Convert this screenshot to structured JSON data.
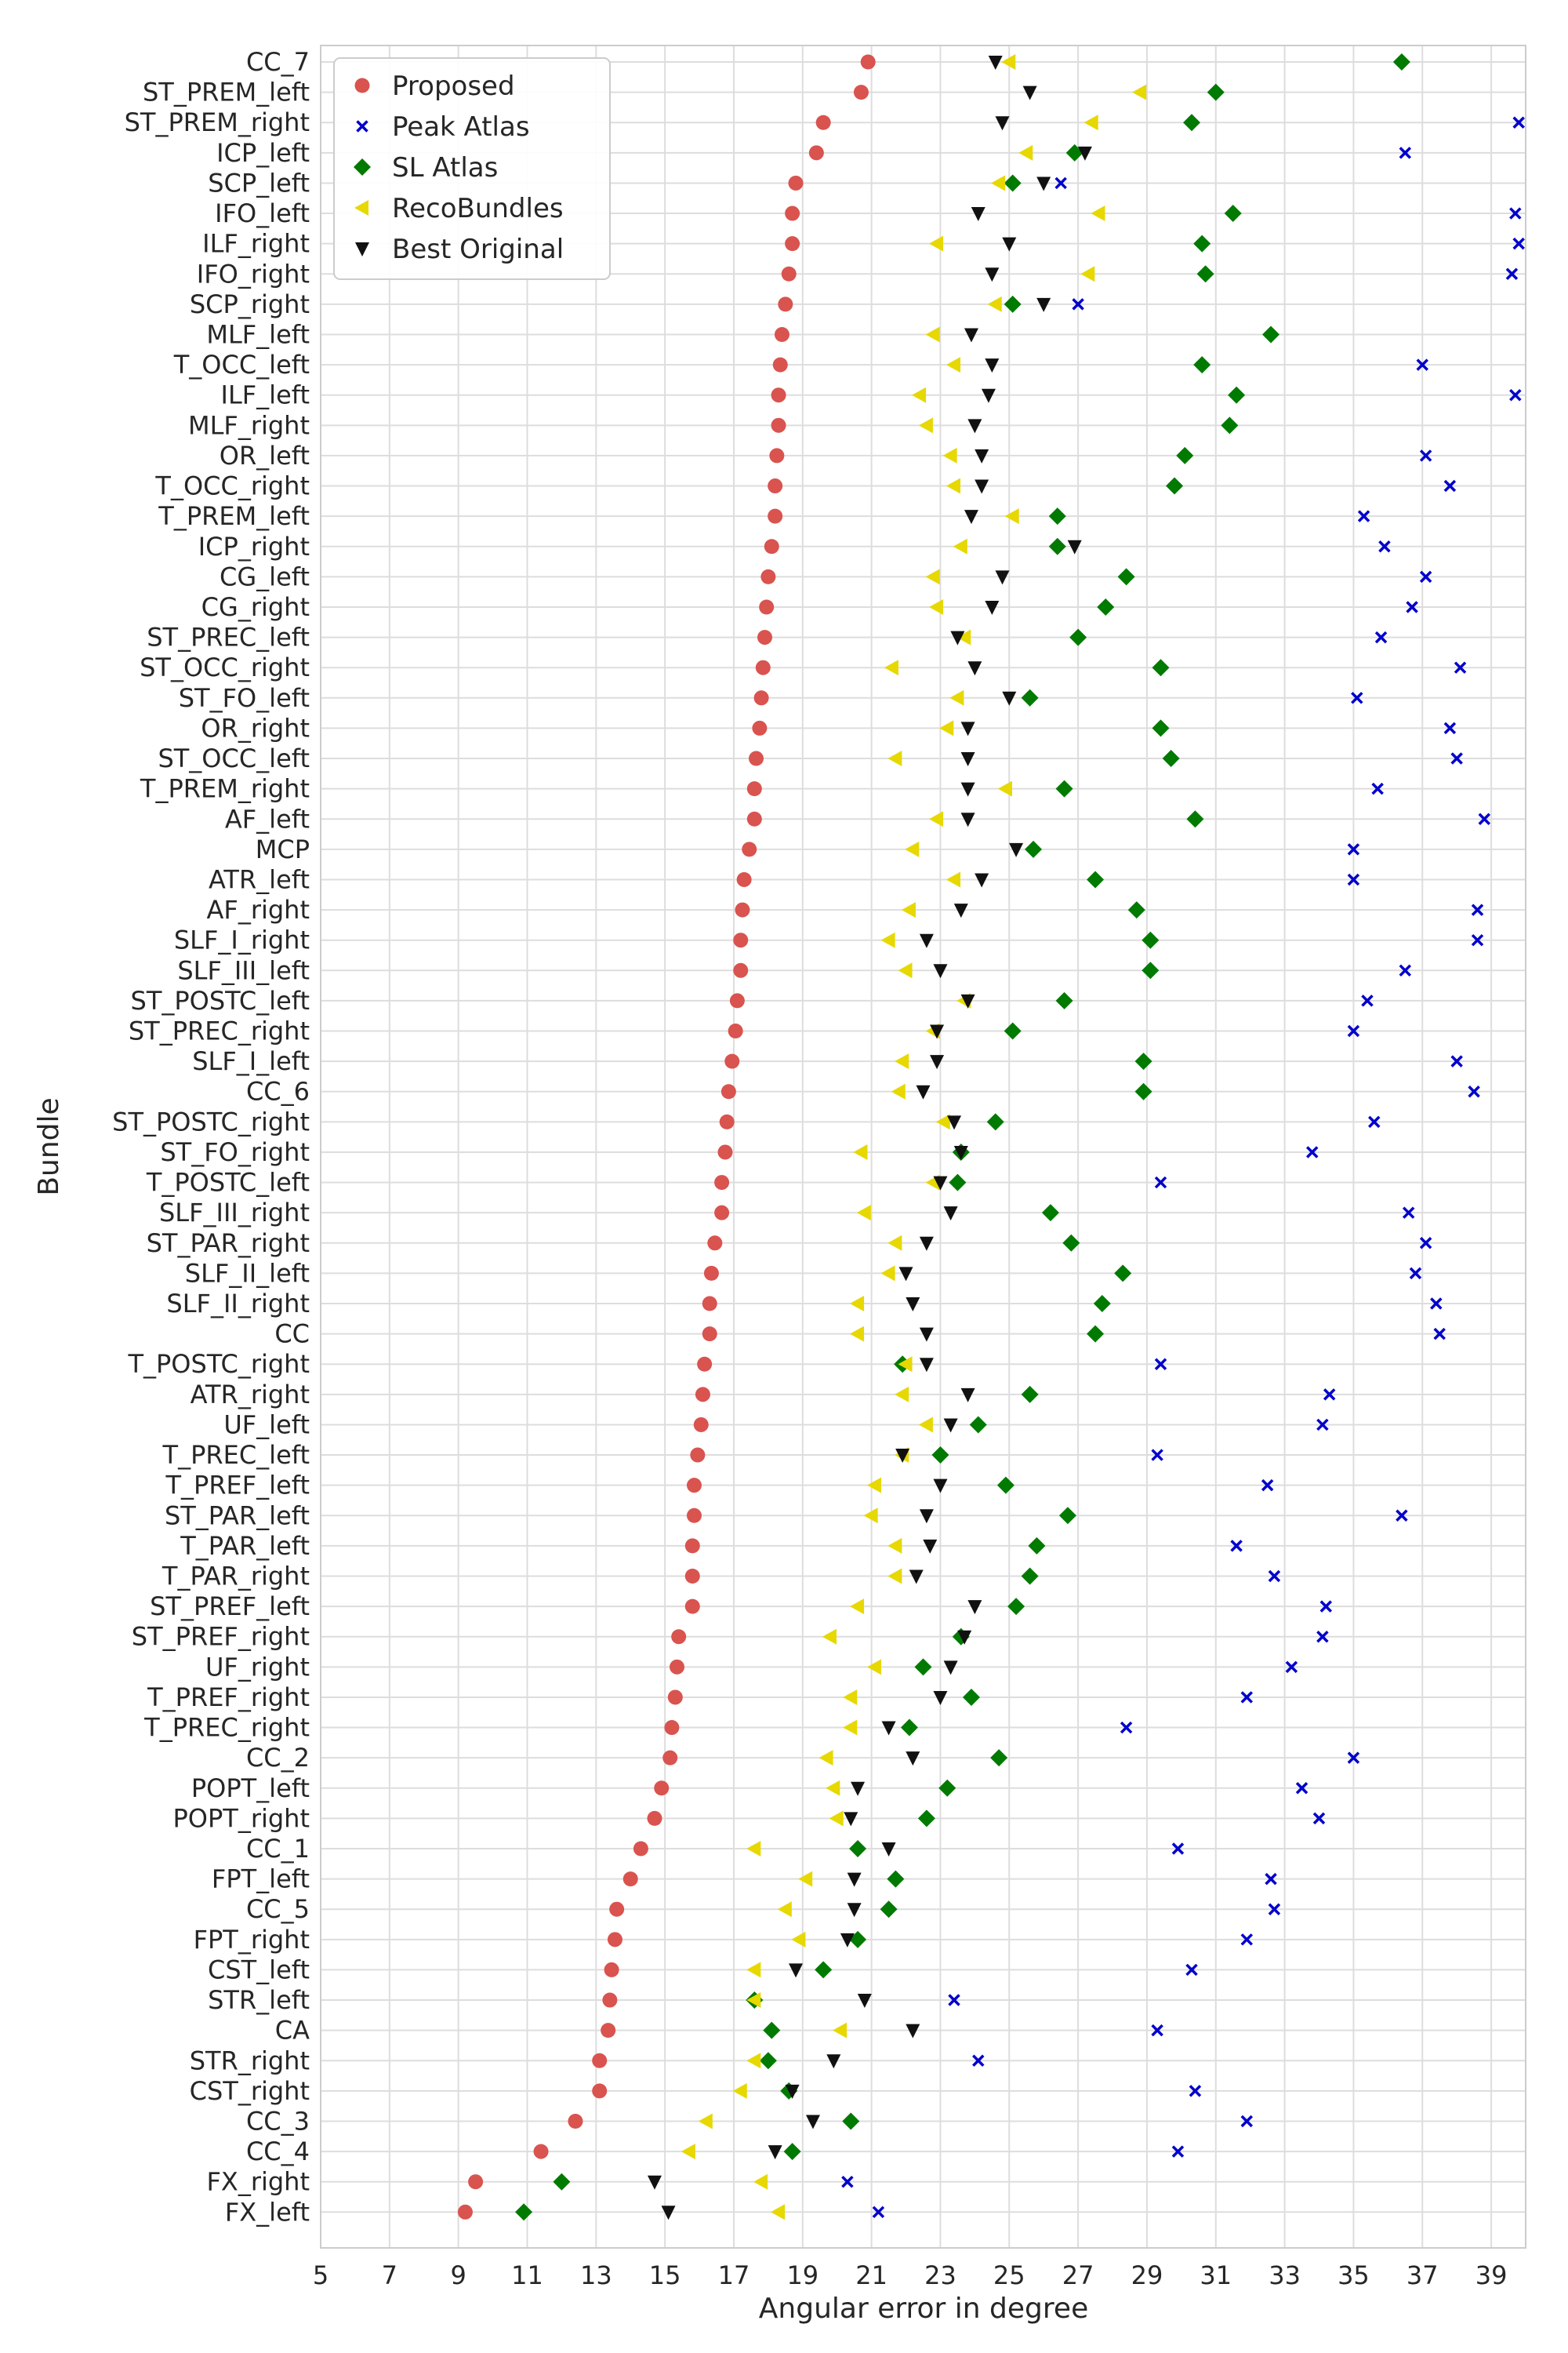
{
  "chart_data": {
    "type": "scatter",
    "xlabel": "Angular error in degree",
    "ylabel": "Bundle",
    "xlim": [
      5,
      40
    ],
    "xticks": [
      5,
      7,
      9,
      11,
      13,
      15,
      17,
      19,
      21,
      23,
      25,
      27,
      29,
      31,
      33,
      35,
      37,
      39
    ],
    "grid": true,
    "legend_position": "top-left",
    "categories": [
      "CC_7",
      "ST_PREM_left",
      "ST_PREM_right",
      "ICP_left",
      "SCP_left",
      "IFO_left",
      "ILF_right",
      "IFO_right",
      "SCP_right",
      "MLF_left",
      "T_OCC_left",
      "ILF_left",
      "MLF_right",
      "OR_left",
      "T_OCC_right",
      "T_PREM_left",
      "ICP_right",
      "CG_left",
      "CG_right",
      "ST_PREC_left",
      "ST_OCC_right",
      "ST_FO_left",
      "OR_right",
      "ST_OCC_left",
      "T_PREM_right",
      "AF_left",
      "MCP",
      "ATR_left",
      "AF_right",
      "SLF_I_right",
      "SLF_III_left",
      "ST_POSTC_left",
      "ST_PREC_right",
      "SLF_I_left",
      "CC_6",
      "ST_POSTC_right",
      "ST_FO_right",
      "T_POSTC_left",
      "SLF_III_right",
      "ST_PAR_right",
      "SLF_II_left",
      "SLF_II_right",
      "CC",
      "T_POSTC_right",
      "ATR_right",
      "UF_left",
      "T_PREC_left",
      "T_PREF_left",
      "ST_PAR_left",
      "T_PAR_left",
      "T_PAR_right",
      "ST_PREF_left",
      "ST_PREF_right",
      "UF_right",
      "T_PREF_right",
      "T_PREC_right",
      "CC_2",
      "POPT_left",
      "POPT_right",
      "CC_1",
      "FPT_left",
      "CC_5",
      "FPT_right",
      "CST_left",
      "STR_left",
      "CA",
      "STR_right",
      "CST_right",
      "CC_3",
      "CC_4",
      "FX_right",
      "FX_left"
    ],
    "series": [
      {
        "name": "Proposed",
        "color": "#d9534f",
        "marker": "circle",
        "values": [
          20.9,
          20.7,
          19.6,
          19.4,
          18.8,
          18.7,
          18.7,
          18.6,
          18.5,
          18.4,
          18.35,
          18.3,
          18.3,
          18.25,
          18.2,
          18.2,
          18.1,
          18.0,
          17.95,
          17.9,
          17.85,
          17.8,
          17.75,
          17.65,
          17.6,
          17.6,
          17.45,
          17.3,
          17.25,
          17.2,
          17.2,
          17.1,
          17.05,
          16.95,
          16.85,
          16.8,
          16.75,
          16.65,
          16.65,
          16.45,
          16.35,
          16.3,
          16.3,
          16.15,
          16.1,
          16.05,
          15.95,
          15.85,
          15.85,
          15.8,
          15.8,
          15.8,
          15.4,
          15.35,
          15.3,
          15.2,
          15.15,
          14.9,
          14.7,
          14.3,
          14.0,
          13.6,
          13.55,
          13.45,
          13.4,
          13.35,
          13.1,
          13.1,
          12.4,
          11.4,
          9.5,
          9.2
        ]
      },
      {
        "name": "Peak Atlas",
        "color": "#0000cc",
        "marker": "x",
        "values": [
          null,
          null,
          39.8,
          36.5,
          26.5,
          39.7,
          39.8,
          39.6,
          27.0,
          null,
          37.0,
          39.7,
          null,
          37.1,
          37.8,
          35.3,
          35.9,
          37.1,
          36.7,
          35.8,
          38.1,
          35.1,
          37.8,
          38.0,
          35.7,
          38.8,
          35.0,
          35.0,
          38.6,
          38.6,
          36.5,
          35.4,
          35.0,
          38.0,
          38.5,
          35.6,
          33.8,
          29.4,
          36.6,
          37.1,
          36.8,
          37.4,
          37.5,
          29.4,
          34.3,
          34.1,
          29.3,
          32.5,
          36.4,
          31.6,
          32.7,
          34.2,
          34.1,
          33.2,
          31.9,
          28.4,
          35.0,
          33.5,
          34.0,
          29.9,
          32.6,
          32.7,
          31.9,
          30.3,
          23.4,
          29.3,
          24.1,
          30.4,
          31.9,
          29.9,
          20.3,
          21.2
        ]
      },
      {
        "name": "SL Atlas",
        "color": "#007a00",
        "marker": "diamond",
        "values": [
          36.4,
          31.0,
          30.3,
          26.9,
          25.1,
          31.5,
          30.6,
          30.7,
          25.1,
          32.6,
          30.6,
          31.6,
          31.4,
          30.1,
          29.8,
          26.4,
          26.4,
          28.4,
          27.8,
          27.0,
          29.4,
          25.6,
          29.4,
          29.7,
          26.6,
          30.4,
          25.7,
          27.5,
          28.7,
          29.1,
          29.1,
          26.6,
          25.1,
          28.9,
          28.9,
          24.6,
          23.6,
          23.5,
          26.2,
          26.8,
          28.3,
          27.7,
          27.5,
          21.9,
          25.6,
          24.1,
          23.0,
          24.9,
          26.7,
          25.8,
          25.6,
          25.2,
          23.6,
          22.5,
          23.9,
          22.1,
          24.7,
          23.2,
          22.6,
          20.6,
          21.7,
          21.5,
          20.6,
          19.6,
          17.6,
          18.1,
          18.0,
          18.6,
          20.4,
          18.7,
          12.0,
          10.9
        ]
      },
      {
        "name": "RecoBundles",
        "color": "#e6d800",
        "marker": "triangle-left",
        "values": [
          25.0,
          28.8,
          27.4,
          25.5,
          24.7,
          27.6,
          22.9,
          27.3,
          24.6,
          22.8,
          23.4,
          22.4,
          22.6,
          23.3,
          23.4,
          25.1,
          23.6,
          22.8,
          22.9,
          23.7,
          21.6,
          23.5,
          23.2,
          21.7,
          24.9,
          22.9,
          22.2,
          23.4,
          22.1,
          21.5,
          22.0,
          23.7,
          22.8,
          21.9,
          21.8,
          23.1,
          20.7,
          22.8,
          20.8,
          21.7,
          21.5,
          20.6,
          20.6,
          22.0,
          21.9,
          22.6,
          21.9,
          21.1,
          21.0,
          21.7,
          21.7,
          20.6,
          19.8,
          21.1,
          20.4,
          20.4,
          19.7,
          19.9,
          20.0,
          17.6,
          19.1,
          18.5,
          18.9,
          17.6,
          17.6,
          20.1,
          17.6,
          17.2,
          16.2,
          15.7,
          17.8,
          18.3
        ]
      },
      {
        "name": "Best Original",
        "color": "#111111",
        "marker": "triangle-down",
        "values": [
          24.6,
          25.6,
          24.8,
          27.2,
          26.0,
          24.1,
          25.0,
          24.5,
          26.0,
          23.9,
          24.5,
          24.4,
          24.0,
          24.2,
          24.2,
          23.9,
          26.9,
          24.8,
          24.5,
          23.5,
          24.0,
          25.0,
          23.8,
          23.8,
          23.8,
          23.8,
          25.2,
          24.2,
          23.6,
          22.6,
          23.0,
          23.8,
          22.9,
          22.9,
          22.5,
          23.4,
          23.6,
          23.0,
          23.3,
          22.6,
          22.0,
          22.2,
          22.6,
          22.6,
          23.8,
          23.3,
          21.9,
          23.0,
          22.6,
          22.7,
          22.3,
          24.0,
          23.7,
          23.3,
          23.0,
          21.5,
          22.2,
          20.6,
          20.4,
          21.5,
          20.5,
          20.5,
          20.3,
          18.8,
          20.8,
          22.2,
          19.9,
          18.7,
          19.3,
          18.2,
          14.7,
          15.1
        ]
      }
    ]
  }
}
